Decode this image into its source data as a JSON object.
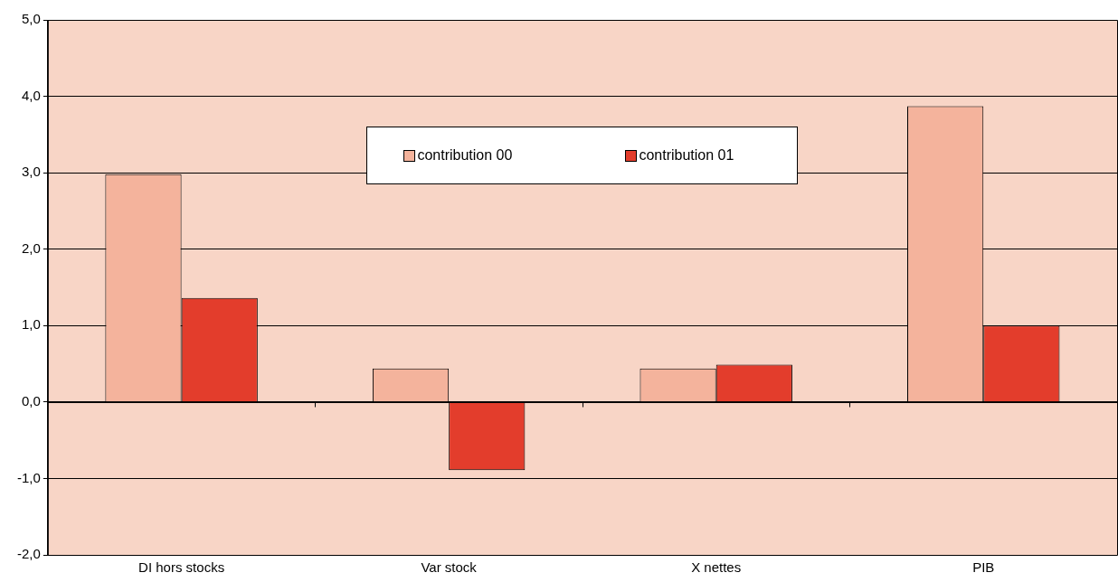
{
  "chart_data": {
    "type": "bar",
    "categories": [
      "DI hors stocks",
      "Var stock",
      "X nettes",
      "PIB"
    ],
    "series": [
      {
        "name": "contribution 00",
        "color": "#f4b39c",
        "values": [
          2.98,
          0.44,
          0.44,
          3.87
        ]
      },
      {
        "name": "contribution 01",
        "color": "#e33d2c",
        "values": [
          1.36,
          -0.89,
          0.49,
          1.0
        ]
      }
    ],
    "ylim": [
      -2,
      5
    ],
    "yticks": [
      {
        "value": -2,
        "label": "-2,0"
      },
      {
        "value": -1,
        "label": "-1,0"
      },
      {
        "value": 0,
        "label": "0,0"
      },
      {
        "value": 1,
        "label": "1,0"
      },
      {
        "value": 2,
        "label": "2,0"
      },
      {
        "value": 3,
        "label": "3,0"
      },
      {
        "value": 4,
        "label": "4,0"
      },
      {
        "value": 5,
        "label": "5,0"
      }
    ],
    "grid": "y",
    "legend": "top"
  }
}
